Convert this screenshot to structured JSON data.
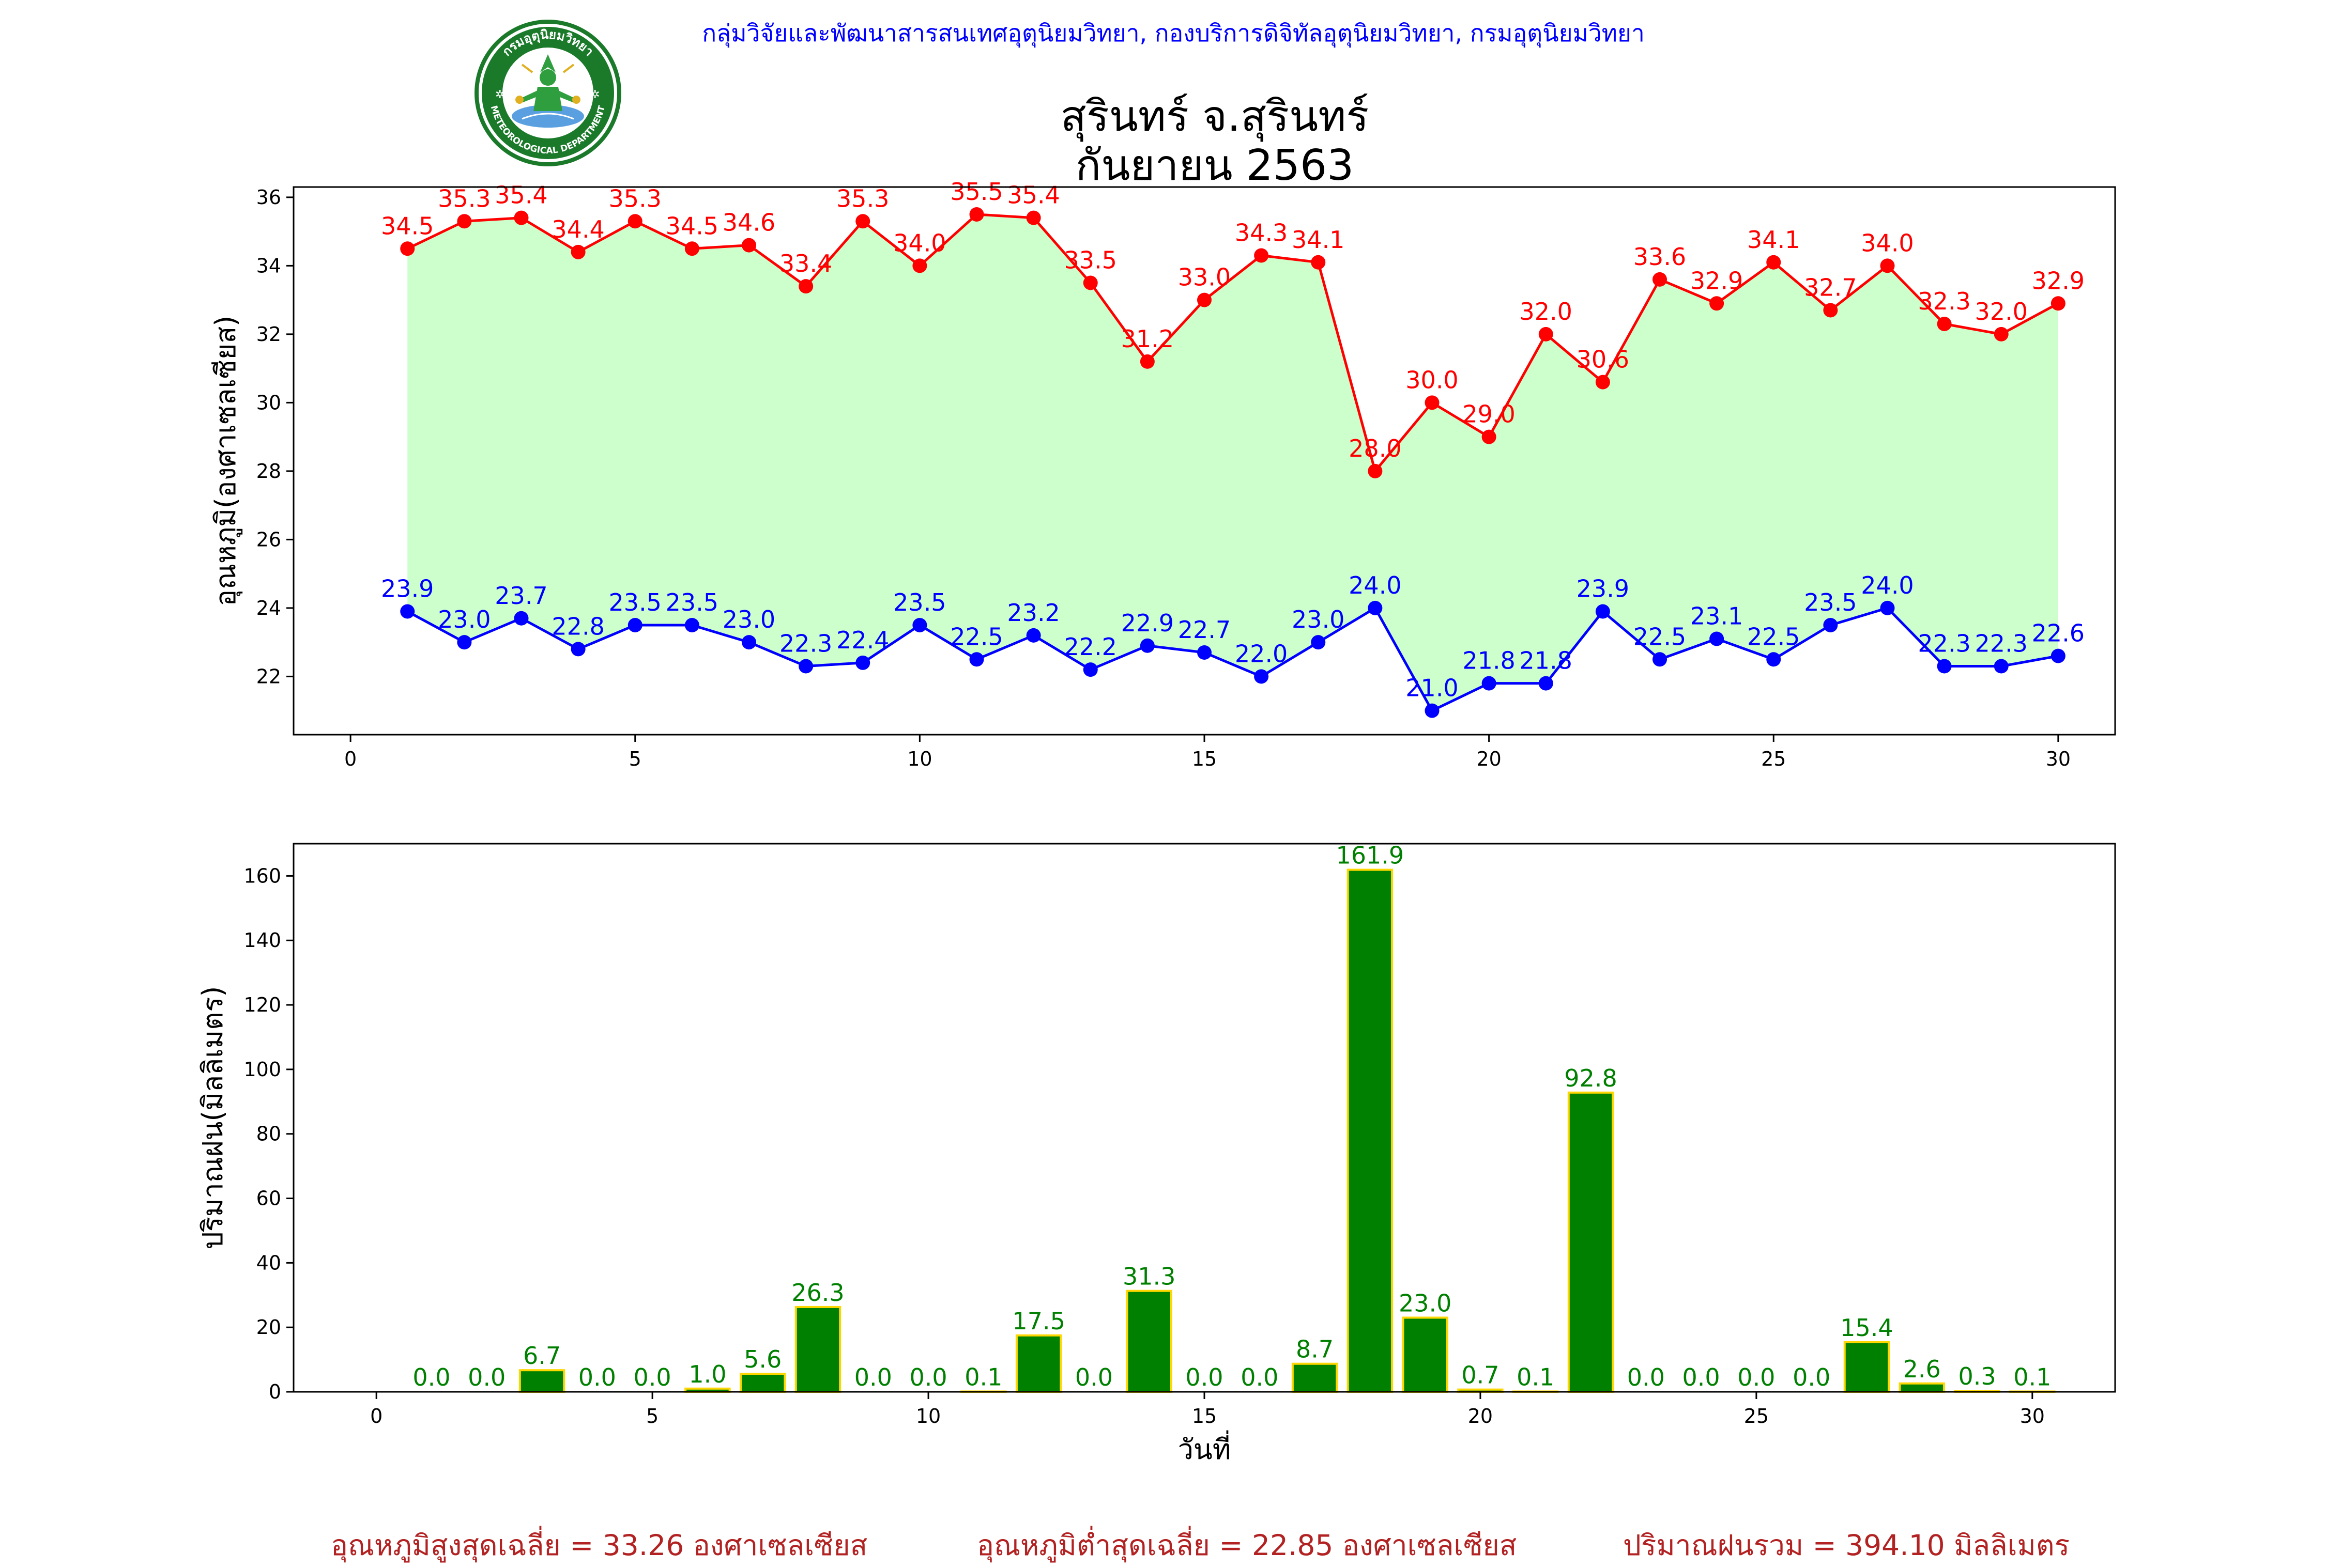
{
  "header": {
    "org_line": "กลุ่มวิจัยและพัฒนาสารสนเทศอุตุนิยมวิทยา, กองบริการดิจิทัลอุตุนิยมวิทยา, กรมอุตุนิยมวิทยา",
    "title_line1": "สุรินทร์ จ.สุรินทร์",
    "title_line2": "กันยายน 2563",
    "logo_text_top": "กรมอุตุนิยมวิทยา",
    "logo_text_bottom": "METEOROLOGICAL DEPARTMENT"
  },
  "chart_data": [
    {
      "type": "line",
      "ylabel": "อุณหภูมิ(องศาเซลเซียส)",
      "xlabel": "",
      "xlim": [
        -1,
        31
      ],
      "ylim": [
        20.3,
        36.3
      ],
      "xticks": [
        0,
        5,
        10,
        15,
        20,
        25,
        30
      ],
      "yticks": [
        22,
        24,
        26,
        28,
        30,
        32,
        34,
        36
      ],
      "fill_between": true,
      "fill_color": "#ccffcc",
      "x": [
        1,
        2,
        3,
        4,
        5,
        6,
        7,
        8,
        9,
        10,
        11,
        12,
        13,
        14,
        15,
        16,
        17,
        18,
        19,
        20,
        21,
        22,
        23,
        24,
        25,
        26,
        27,
        28,
        29,
        30
      ],
      "series": [
        {
          "color": "#ff0000",
          "values": [
            34.5,
            35.3,
            35.4,
            34.4,
            35.3,
            34.5,
            34.6,
            33.4,
            35.3,
            34.0,
            35.5,
            35.4,
            33.5,
            31.2,
            33.0,
            34.3,
            34.1,
            28.0,
            30.0,
            29.0,
            32.0,
            30.6,
            33.6,
            32.9,
            34.1,
            32.7,
            34.0,
            32.3,
            32.0,
            32.9
          ]
        },
        {
          "color": "#0000ff",
          "values": [
            23.9,
            23.0,
            23.7,
            22.8,
            23.5,
            23.5,
            23.0,
            22.3,
            22.4,
            23.5,
            22.5,
            23.2,
            22.2,
            22.9,
            22.7,
            22.0,
            23.0,
            24.0,
            21.0,
            21.8,
            21.8,
            23.9,
            22.5,
            23.1,
            22.5,
            23.5,
            24.0,
            22.3,
            22.3,
            22.6
          ]
        }
      ]
    },
    {
      "type": "bar",
      "ylabel": "ปริมาณฝน(มิลลิเมตร)",
      "xlabel": "วันที่",
      "xlim": [
        -1.5,
        31.5
      ],
      "ylim": [
        0,
        170
      ],
      "xticks": [
        0,
        5,
        10,
        15,
        20,
        25,
        30
      ],
      "yticks": [
        0,
        20,
        40,
        60,
        80,
        100,
        120,
        140,
        160
      ],
      "bar_color": "#008000",
      "bar_edge_color": "#ffd700",
      "x": [
        1,
        2,
        3,
        4,
        5,
        6,
        7,
        8,
        9,
        10,
        11,
        12,
        13,
        14,
        15,
        16,
        17,
        18,
        19,
        20,
        21,
        22,
        23,
        24,
        25,
        26,
        27,
        28,
        29,
        30
      ],
      "values": [
        0.0,
        0.0,
        6.7,
        0.0,
        0.0,
        1.0,
        5.6,
        26.3,
        0.0,
        0.0,
        0.1,
        17.5,
        0.0,
        31.3,
        0.0,
        0.0,
        8.7,
        161.9,
        23.0,
        0.7,
        0.1,
        92.8,
        0.0,
        0.0,
        0.0,
        0.0,
        15.4,
        2.6,
        0.3,
        0.1
      ]
    }
  ],
  "footer": {
    "avg_max": "อุณหภูมิสูงสุดเฉลี่ย = 33.26 องศาเซลเซียส",
    "avg_min": "อุณหภูมิต่ำสุดเฉลี่ย = 22.85 องศาเซลเซียส",
    "total_rain": "ปริมาณฝนรวม = 394.10 มิลลิเมตร"
  }
}
